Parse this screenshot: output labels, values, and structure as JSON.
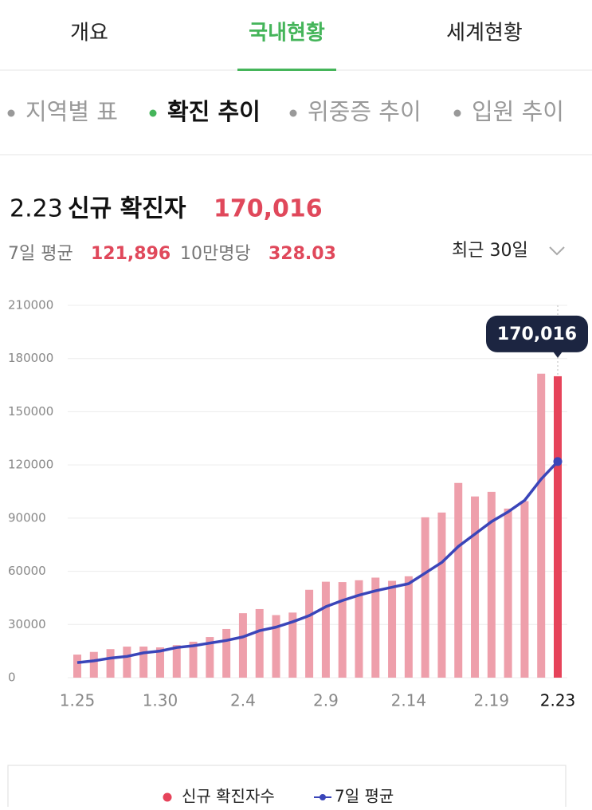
{
  "tabs": {
    "items": [
      "개요",
      "국내현황",
      "세계현황"
    ],
    "active": 1
  },
  "subtabs": {
    "items": [
      "지역별 표",
      "확진 추이",
      "위중증 추이",
      "입원 추이"
    ],
    "active": 1
  },
  "header": {
    "date": "2.23",
    "title": "신규 확진자",
    "count": "170,016",
    "avg_label": "7일 평균",
    "avg": "121,896",
    "per_label": "10만명당",
    "per": "328.03",
    "range": "최근 30일"
  },
  "chart_data": {
    "type": "bar",
    "categories": [
      "1.25",
      null,
      null,
      null,
      null,
      "1.30",
      null,
      null,
      null,
      null,
      "2.4",
      null,
      null,
      null,
      null,
      "2.9",
      null,
      null,
      null,
      null,
      "2.14",
      null,
      null,
      null,
      null,
      "2.19",
      null,
      null,
      null,
      "2.23"
    ],
    "series": [
      {
        "name": "신규 확진자수",
        "type": "bar",
        "color": "#ee9fab",
        "highlight_color": "#e6435a",
        "values": [
          13012,
          14518,
          16096,
          17514,
          17542,
          17079,
          18343,
          20270,
          22907,
          27443,
          36362,
          38691,
          35286,
          36719,
          49567,
          54122,
          53926,
          54941,
          56431,
          54619,
          57177,
          90443,
          93135,
          109831,
          102211,
          104829,
          95362,
          99573,
          171452,
          170016
        ],
        "value_labels": [
          null,
          null,
          null,
          null,
          null,
          null,
          null,
          null,
          null,
          null,
          null,
          null,
          null,
          null,
          null,
          null,
          null,
          null,
          null,
          null,
          null,
          null,
          null,
          null,
          null,
          null,
          null,
          null,
          null,
          "170,016"
        ]
      },
      {
        "name": "7일 평균",
        "type": "line",
        "color": "#3a45b9",
        "values": [
          8500,
          9500,
          11000,
          12000,
          14000,
          15000,
          17000,
          18000,
          19500,
          21000,
          23000,
          26500,
          28500,
          31500,
          35000,
          40000,
          43500,
          46500,
          49000,
          51000,
          53000,
          59000,
          65000,
          74000,
          81000,
          88000,
          93500,
          100000,
          112000,
          121896
        ]
      }
    ],
    "ylim": [
      0,
      210000
    ],
    "yticks": [
      0,
      30000,
      60000,
      90000,
      120000,
      150000,
      180000,
      210000
    ],
    "grid": true
  }
}
